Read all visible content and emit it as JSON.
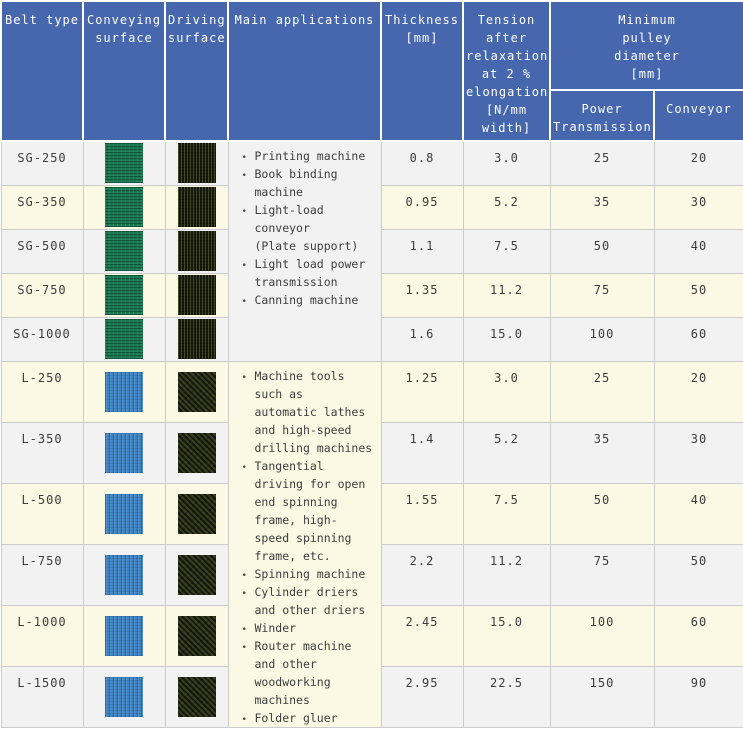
{
  "chart_data": {
    "type": "table",
    "title": "Belt specifications table",
    "header": {
      "belt_type": "Belt type",
      "conveying_surface": "Conveying\nsurface",
      "driving_surface": "Driving\nsurface",
      "main_applications": "Main applications",
      "thickness": "Thickness\n[mm]",
      "tension": "Tension\nafter\nrelaxation\nat 2 %\nelongation\n[N/mm\nwidth]",
      "min_pulley_diameter": "Minimum\npulley\ndiameter\n[mm]",
      "power_transmission": "Power\nTransmission",
      "conveyor": "Conveyor"
    },
    "columns": [
      "Belt type",
      "Conveying surface",
      "Driving surface",
      "Main applications",
      "Thickness [mm]",
      "Tension after relaxation at 2 % elongation [N/mm width]",
      "Minimum pulley diameter [mm] - Power Transmission",
      "Minimum pulley diameter [mm] - Conveyor"
    ],
    "groups": [
      {
        "name": "SG",
        "conveying_color": "#16744e",
        "driving_color": "#292e18",
        "applications": [
          "Printing machine",
          "Book binding\nmachine",
          "Light-load\nconveyor\n(Plate support)",
          "Light load power\ntransmission",
          "Canning machine"
        ],
        "rows": [
          {
            "belt_type": "SG-250",
            "thickness": "0.8",
            "tension": "3.0",
            "power_transmission": "25",
            "conveyor": "20"
          },
          {
            "belt_type": "SG-350",
            "thickness": "0.95",
            "tension": "5.2",
            "power_transmission": "35",
            "conveyor": "30"
          },
          {
            "belt_type": "SG-500",
            "thickness": "1.1",
            "tension": "7.5",
            "power_transmission": "50",
            "conveyor": "40"
          },
          {
            "belt_type": "SG-750",
            "thickness": "1.35",
            "tension": "11.2",
            "power_transmission": "75",
            "conveyor": "50"
          },
          {
            "belt_type": "SG-1000",
            "thickness": "1.6",
            "tension": "15.0",
            "power_transmission": "100",
            "conveyor": "60"
          }
        ]
      },
      {
        "name": "L",
        "conveying_color": "#3e86c7",
        "driving_color": "#282c1a",
        "applications": [
          "Machine tools\nsuch as\nautomatic lathes\nand high-speed\ndrilling machines",
          "Tangential\ndriving for open\nend spinning\nframe, high-\nspeed spinning\nframe, etc.",
          "Spinning machine",
          "Cylinder driers\nand other driers",
          "Winder",
          "Router machine\nand other\nwoodworking\nmachines",
          "Folder gluer"
        ],
        "rows": [
          {
            "belt_type": "L-250",
            "thickness": "1.25",
            "tension": "3.0",
            "power_transmission": "25",
            "conveyor": "20"
          },
          {
            "belt_type": "L-350",
            "thickness": "1.4",
            "tension": "5.2",
            "power_transmission": "35",
            "conveyor": "30"
          },
          {
            "belt_type": "L-500",
            "thickness": "1.55",
            "tension": "7.5",
            "power_transmission": "50",
            "conveyor": "40"
          },
          {
            "belt_type": "L-750",
            "thickness": "2.2",
            "tension": "11.2",
            "power_transmission": "75",
            "conveyor": "50"
          },
          {
            "belt_type": "L-1000",
            "thickness": "2.45",
            "tension": "15.0",
            "power_transmission": "100",
            "conveyor": "60"
          },
          {
            "belt_type": "L-1500",
            "thickness": "2.95",
            "tension": "22.5",
            "power_transmission": "150",
            "conveyor": "90"
          }
        ]
      }
    ],
    "colors": {
      "header_bg": "#4667ae",
      "header_text": "#ffffff",
      "row_alt_gray": "#f2f2f2",
      "row_alt_cream": "#fbf9e3",
      "border": "#cccccc",
      "body_text": "#3d3d3d",
      "sg_conveying_swatch": "#16744e",
      "sg_driving_swatch": "#292e18",
      "l_conveying_swatch": "#3e86c7",
      "l_driving_swatch": "#282c1a"
    },
    "layout_hints": {
      "grid": true,
      "legend": "none",
      "header_rows": 2,
      "merged_application_cells": true
    }
  }
}
